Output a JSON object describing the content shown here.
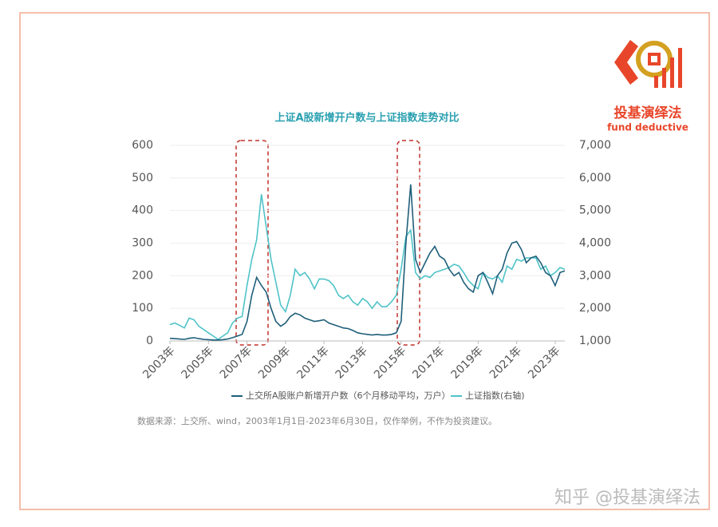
{
  "chart_data": {
    "type": "line",
    "title": "上证A股新增开户数与上证指数走势对比",
    "source": "数据来源：上交所、wind，2003年1月1日-2023年6月30日，仅作举例，不作为投资建议。",
    "x": [
      2003,
      2003.25,
      2003.5,
      2003.75,
      2004,
      2004.25,
      2004.5,
      2004.75,
      2005,
      2005.25,
      2005.5,
      2005.75,
      2006,
      2006.25,
      2006.5,
      2006.75,
      2007,
      2007.25,
      2007.5,
      2007.75,
      2008,
      2008.25,
      2008.5,
      2008.75,
      2009,
      2009.25,
      2009.5,
      2009.75,
      2010,
      2010.25,
      2010.5,
      2010.75,
      2011,
      2011.25,
      2011.5,
      2011.75,
      2012,
      2012.25,
      2012.5,
      2012.75,
      2013,
      2013.25,
      2013.5,
      2013.75,
      2014,
      2014.25,
      2014.5,
      2014.75,
      2015,
      2015.25,
      2015.5,
      2015.75,
      2016,
      2016.25,
      2016.5,
      2016.75,
      2017,
      2017.25,
      2017.5,
      2017.75,
      2018,
      2018.25,
      2018.5,
      2018.75,
      2019,
      2019.25,
      2019.5,
      2019.75,
      2020,
      2020.25,
      2020.5,
      2020.75,
      2021,
      2021.25,
      2021.5,
      2021.75,
      2022,
      2022.25,
      2022.5,
      2022.75,
      2023,
      2023.25,
      2023.5
    ],
    "xlim": [
      2003,
      2023.5
    ],
    "xticks": [
      {
        "value": 2003,
        "label": "2003年"
      },
      {
        "value": 2005,
        "label": "2005年"
      },
      {
        "value": 2007,
        "label": "2007年"
      },
      {
        "value": 2009,
        "label": "2009年"
      },
      {
        "value": 2011,
        "label": "2011年"
      },
      {
        "value": 2013,
        "label": "2013年"
      },
      {
        "value": 2015,
        "label": "2015年"
      },
      {
        "value": 2017,
        "label": "2017年"
      },
      {
        "value": 2019,
        "label": "2019年"
      },
      {
        "value": 2021,
        "label": "2021年"
      },
      {
        "value": 2023,
        "label": "2023年"
      }
    ],
    "ylim": [
      0,
      600
    ],
    "yticks": [
      0,
      100,
      200,
      300,
      400,
      500,
      600
    ],
    "y2lim": [
      1000,
      7000
    ],
    "y2ticks": [
      {
        "value": 1000,
        "label": "1,000"
      },
      {
        "value": 2000,
        "label": "2,000"
      },
      {
        "value": 3000,
        "label": "3,000"
      },
      {
        "value": 4000,
        "label": "4,000"
      },
      {
        "value": 5000,
        "label": "5,000"
      },
      {
        "value": 6000,
        "label": "6,000"
      },
      {
        "value": 7000,
        "label": "7,000"
      }
    ],
    "grid": true,
    "series": [
      {
        "name": "上交所A股账户新增开户数（6个月移动平均，万户）",
        "color": "#1f5f7a",
        "values": [
          8,
          7,
          6,
          5,
          8,
          10,
          7,
          5,
          4,
          3,
          3,
          4,
          6,
          10,
          15,
          20,
          60,
          140,
          195,
          170,
          150,
          100,
          60,
          45,
          55,
          75,
          85,
          80,
          70,
          65,
          60,
          62,
          65,
          55,
          50,
          45,
          40,
          38,
          32,
          25,
          22,
          20,
          18,
          20,
          18,
          18,
          20,
          25,
          60,
          300,
          480,
          250,
          210,
          240,
          270,
          290,
          260,
          250,
          220,
          200,
          210,
          180,
          160,
          150,
          200,
          210,
          180,
          145,
          200,
          220,
          270,
          300,
          305,
          280,
          240,
          255,
          260,
          240,
          210,
          200,
          170,
          210,
          215
        ]
      },
      {
        "name": "上证指数(右轴)",
        "color": "#4fc3c8",
        "axis": "y2",
        "values": [
          1500,
          1550,
          1480,
          1400,
          1700,
          1650,
          1450,
          1350,
          1250,
          1150,
          1050,
          1150,
          1250,
          1550,
          1700,
          1750,
          2700,
          3500,
          4100,
          5500,
          4500,
          3500,
          2800,
          2100,
          1900,
          2400,
          3200,
          3000,
          3100,
          2900,
          2600,
          2900,
          2900,
          2850,
          2700,
          2400,
          2300,
          2400,
          2200,
          2100,
          2300,
          2200,
          2000,
          2200,
          2050,
          2050,
          2200,
          2400,
          3200,
          4200,
          4400,
          3100,
          2900,
          3000,
          2950,
          3100,
          3150,
          3200,
          3250,
          3350,
          3300,
          3100,
          2850,
          2700,
          2600,
          3100,
          2950,
          2900,
          3000,
          2800,
          3300,
          3200,
          3500,
          3450,
          3550,
          3550,
          3550,
          3200,
          3300,
          3000,
          3100,
          3250,
          3200
        ]
      }
    ]
  },
  "logo": {
    "title": "投基演绎法",
    "subtitle": "fund deductive"
  },
  "watermark": "知乎 @投基演绎法"
}
